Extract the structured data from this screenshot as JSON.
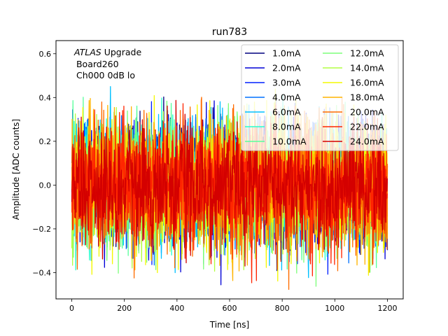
{
  "chart_data": {
    "type": "line",
    "title": "run783",
    "xlabel": "Time [ns]",
    "ylabel": "Amplitude [ADC counts]",
    "xlim": [
      -60,
      1260
    ],
    "ylim": [
      -0.52,
      0.66
    ],
    "xticks": [
      0,
      200,
      400,
      600,
      800,
      1000,
      1200
    ],
    "yticks": [
      -0.4,
      -0.2,
      0.0,
      0.2,
      0.4,
      0.6
    ],
    "xtick_labels": [
      "0",
      "200",
      "400",
      "600",
      "800",
      "1000",
      "1200"
    ],
    "ytick_labels": [
      "−0.4",
      "−0.2",
      "0.0",
      "0.2",
      "0.4",
      "0.6"
    ],
    "grid": false,
    "legend_placement": "top-right",
    "legend_columns": 2,
    "annotation": {
      "atlas": "ATLAS",
      "upgrade": " Upgrade",
      "board": " Board260",
      "channel": " Ch000 0dB lo"
    },
    "noise_description": "each series is dense noise centered at 0 sampled every 1 ns from 0 to 1200 ns",
    "x_range": [
      0,
      1200
    ],
    "series": [
      {
        "name": "1.0mA",
        "color": "#00007f",
        "amplitude": 0.35
      },
      {
        "name": "2.0mA",
        "color": "#0000d6",
        "amplitude": 0.37
      },
      {
        "name": "3.0mA",
        "color": "#0020ff",
        "amplitude": 0.36
      },
      {
        "name": "4.0mA",
        "color": "#0070ff",
        "amplitude": 0.35
      },
      {
        "name": "6.0mA",
        "color": "#00c0ff",
        "amplitude": 0.36
      },
      {
        "name": "8.0mA",
        "color": "#26ffd0",
        "amplitude": 0.35
      },
      {
        "name": "10.0mA",
        "color": "#59ff9c",
        "amplitude": 0.36
      },
      {
        "name": "12.0mA",
        "color": "#7dff7a",
        "amplitude": 0.37
      },
      {
        "name": "14.0mA",
        "color": "#b3ff43",
        "amplitude": 0.38
      },
      {
        "name": "16.0mA",
        "color": "#f4f802",
        "amplitude": 0.4
      },
      {
        "name": "18.0mA",
        "color": "#ffb400",
        "amplitude": 0.42
      },
      {
        "name": "20.0mA",
        "color": "#ff6c00",
        "amplitude": 0.4
      },
      {
        "name": "22.0mA",
        "color": "#ff2500",
        "amplitude": 0.38
      },
      {
        "name": "24.0mA",
        "color": "#d40000",
        "amplitude": 0.34
      }
    ]
  }
}
